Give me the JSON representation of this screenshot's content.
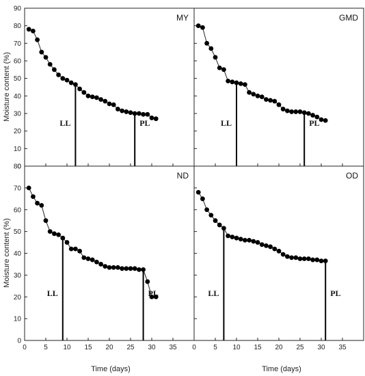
{
  "chart_data": {
    "type": "scatter",
    "ylabel": "Moisture content (%)",
    "xlabel": "Time (days)",
    "xlim": [
      0,
      40
    ],
    "xticks": [
      0,
      5,
      10,
      15,
      20,
      25,
      30,
      35
    ],
    "grid": false,
    "panels": [
      {
        "label": "MY",
        "ylim": [
          0,
          90
        ],
        "yticks": [
          0,
          10,
          20,
          30,
          40,
          50,
          60,
          70,
          80,
          90
        ],
        "x": [
          1,
          2,
          3,
          4,
          5,
          6,
          7,
          8,
          9,
          10,
          11,
          12,
          13,
          14,
          15,
          16,
          17,
          18,
          19,
          20,
          21,
          22,
          23,
          24,
          25,
          26,
          27,
          28,
          29,
          30,
          31
        ],
        "y": [
          78,
          77,
          72,
          65,
          62,
          58,
          55,
          52,
          50,
          49,
          47.5,
          46.5,
          44,
          42,
          40,
          39.5,
          39,
          38,
          37,
          35.5,
          35,
          32.5,
          31.5,
          31,
          30.5,
          30,
          30,
          29.5,
          29.5,
          27.5,
          27
        ],
        "markers": [
          {
            "label": "LL",
            "x": 12,
            "y": 46.5
          },
          {
            "label": "PL",
            "x": 26,
            "y": 30
          }
        ]
      },
      {
        "label": "GMD",
        "ylim": [
          0,
          90
        ],
        "yticks": [
          0,
          10,
          20,
          30,
          40,
          50,
          60,
          70,
          80,
          90
        ],
        "x": [
          1,
          2,
          3,
          4,
          5,
          6,
          7,
          8,
          9,
          10,
          11,
          12,
          13,
          14,
          15,
          16,
          17,
          18,
          19,
          20,
          21,
          22,
          23,
          24,
          25,
          26,
          27,
          28,
          29,
          30,
          31
        ],
        "y": [
          80,
          79,
          70,
          67,
          62,
          56,
          55,
          48.5,
          48,
          47.5,
          47,
          46.5,
          42,
          41,
          40,
          39.5,
          38,
          37.5,
          37,
          35,
          32.5,
          31.5,
          31,
          31,
          31,
          30.5,
          30,
          29,
          28,
          26.5,
          26
        ],
        "markers": [
          {
            "label": "LL",
            "x": 10,
            "y": 47.5
          },
          {
            "label": "PL",
            "x": 26,
            "y": 30.5
          }
        ]
      },
      {
        "label": "ND",
        "ylim": [
          0,
          80
        ],
        "yticks": [
          0,
          10,
          20,
          30,
          40,
          50,
          60,
          70,
          80
        ],
        "x": [
          1,
          2,
          3,
          4,
          5,
          6,
          7,
          8,
          9,
          10,
          11,
          12,
          13,
          14,
          15,
          16,
          17,
          18,
          19,
          20,
          21,
          22,
          23,
          24,
          25,
          26,
          27,
          28,
          29,
          30,
          31
        ],
        "y": [
          70,
          66,
          63,
          62,
          55,
          50,
          49,
          48.5,
          47,
          45,
          42,
          42,
          41,
          38,
          37.5,
          37,
          36,
          35,
          34,
          33.5,
          33.5,
          33.5,
          33,
          33,
          33,
          33,
          32.5,
          32.5,
          27,
          20,
          20
        ],
        "markers": [
          {
            "label": "LL",
            "x": 9,
            "y": 47
          },
          {
            "label": "PL",
            "x": 28,
            "y": 32.5
          }
        ]
      },
      {
        "label": "OD",
        "ylim": [
          0,
          80
        ],
        "yticks": [
          0,
          10,
          20,
          30,
          40,
          50,
          60,
          70,
          80
        ],
        "x": [
          1,
          2,
          3,
          4,
          5,
          6,
          7,
          8,
          9,
          10,
          11,
          12,
          13,
          14,
          15,
          16,
          17,
          18,
          19,
          20,
          21,
          22,
          23,
          24,
          25,
          26,
          27,
          28,
          29,
          30,
          31
        ],
        "y": [
          68,
          65,
          60,
          57.5,
          55,
          53,
          51.5,
          48,
          47.5,
          47,
          46.5,
          46,
          46,
          45.5,
          45,
          44,
          43.5,
          43,
          42,
          41,
          39.5,
          38.5,
          38,
          38,
          37.5,
          37.5,
          37.5,
          37,
          37,
          36.5,
          36.5
        ],
        "markers": [
          {
            "label": "LL",
            "x": 7,
            "y": 51.5
          },
          {
            "label": "PL",
            "x": 31,
            "y": 36.5
          }
        ]
      }
    ]
  }
}
